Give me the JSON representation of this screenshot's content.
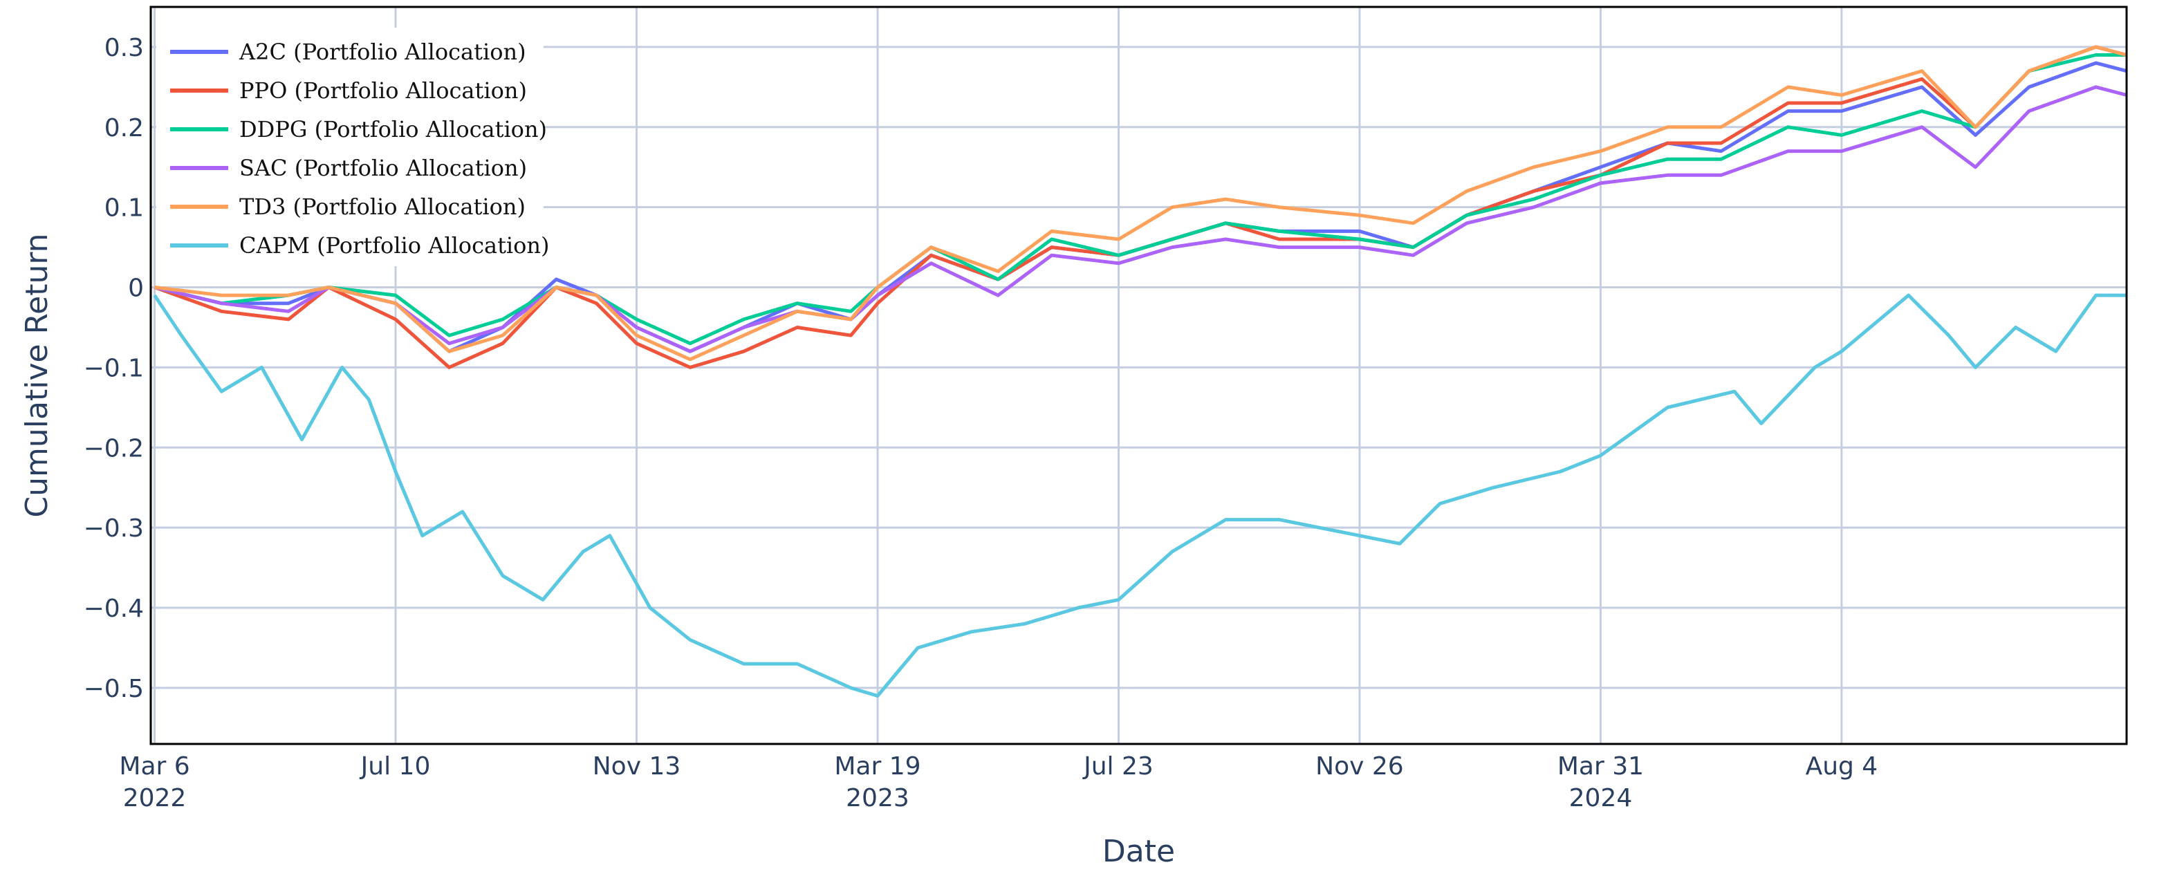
{
  "chart_data": {
    "type": "line",
    "title": "",
    "xlabel": "Date",
    "ylabel": "Cumulative Return",
    "xlim": [
      "2022-03-04",
      "2024-12-31"
    ],
    "ylim": [
      -0.57,
      0.35
    ],
    "grid": true,
    "legend_position": "top-left",
    "x_ticks": [
      {
        "date": "2022-03-06",
        "line1": "Mar 6",
        "line2": "2022"
      },
      {
        "date": "2022-07-10",
        "line1": "Jul 10",
        "line2": ""
      },
      {
        "date": "2022-11-13",
        "line1": "Nov 13",
        "line2": ""
      },
      {
        "date": "2023-03-19",
        "line1": "Mar 19",
        "line2": "2023"
      },
      {
        "date": "2023-07-23",
        "line1": "Jul 23",
        "line2": ""
      },
      {
        "date": "2023-11-26",
        "line1": "Nov 26",
        "line2": ""
      },
      {
        "date": "2024-03-31",
        "line1": "Mar 31",
        "line2": "2024"
      },
      {
        "date": "2024-08-04",
        "line1": "Aug 4",
        "line2": ""
      }
    ],
    "y_ticks": [
      {
        "value": 0.3,
        "label": "0.3"
      },
      {
        "value": 0.2,
        "label": "0.2"
      },
      {
        "value": 0.1,
        "label": "0.1"
      },
      {
        "value": 0,
        "label": "0"
      },
      {
        "value": -0.1,
        "label": "−0.1"
      },
      {
        "value": -0.2,
        "label": "−0.2"
      },
      {
        "value": -0.3,
        "label": "−0.3"
      },
      {
        "value": -0.4,
        "label": "−0.4"
      },
      {
        "value": -0.5,
        "label": "−0.5"
      }
    ],
    "series": [
      {
        "name": "A2C (Portfolio Allocation)",
        "color": "#636efa",
        "points": [
          [
            "2022-03-06",
            0.0
          ],
          [
            "2022-04-10",
            -0.02
          ],
          [
            "2022-05-15",
            -0.02
          ],
          [
            "2022-06-05",
            0.0
          ],
          [
            "2022-07-10",
            -0.02
          ],
          [
            "2022-08-07",
            -0.08
          ],
          [
            "2022-09-04",
            -0.05
          ],
          [
            "2022-10-02",
            0.01
          ],
          [
            "2022-10-23",
            -0.01
          ],
          [
            "2022-11-13",
            -0.05
          ],
          [
            "2022-12-11",
            -0.08
          ],
          [
            "2023-01-08",
            -0.05
          ],
          [
            "2023-02-05",
            -0.02
          ],
          [
            "2023-03-05",
            -0.04
          ],
          [
            "2023-03-19",
            -0.01
          ],
          [
            "2023-04-16",
            0.04
          ],
          [
            "2023-05-21",
            0.01
          ],
          [
            "2023-06-18",
            0.05
          ],
          [
            "2023-07-23",
            0.04
          ],
          [
            "2023-08-20",
            0.06
          ],
          [
            "2023-09-17",
            0.08
          ],
          [
            "2023-10-15",
            0.07
          ],
          [
            "2023-11-26",
            0.07
          ],
          [
            "2023-12-24",
            0.05
          ],
          [
            "2024-01-21",
            0.09
          ],
          [
            "2024-02-25",
            0.12
          ],
          [
            "2024-03-31",
            0.15
          ],
          [
            "2024-05-05",
            0.18
          ],
          [
            "2024-06-02",
            0.17
          ],
          [
            "2024-07-07",
            0.22
          ],
          [
            "2024-08-04",
            0.22
          ],
          [
            "2024-09-15",
            0.25
          ],
          [
            "2024-10-13",
            0.19
          ],
          [
            "2024-11-10",
            0.25
          ],
          [
            "2024-12-15",
            0.28
          ],
          [
            "2024-12-31",
            0.27
          ]
        ]
      },
      {
        "name": "PPO (Portfolio Allocation)",
        "color": "#ef553b",
        "points": [
          [
            "2022-03-06",
            0.0
          ],
          [
            "2022-04-10",
            -0.03
          ],
          [
            "2022-05-15",
            -0.04
          ],
          [
            "2022-06-05",
            0.0
          ],
          [
            "2022-07-10",
            -0.04
          ],
          [
            "2022-08-07",
            -0.1
          ],
          [
            "2022-09-04",
            -0.07
          ],
          [
            "2022-10-02",
            0.0
          ],
          [
            "2022-10-23",
            -0.02
          ],
          [
            "2022-11-13",
            -0.07
          ],
          [
            "2022-12-11",
            -0.1
          ],
          [
            "2023-01-08",
            -0.08
          ],
          [
            "2023-02-05",
            -0.05
          ],
          [
            "2023-03-05",
            -0.06
          ],
          [
            "2023-03-19",
            -0.02
          ],
          [
            "2023-04-16",
            0.04
          ],
          [
            "2023-05-21",
            0.01
          ],
          [
            "2023-06-18",
            0.05
          ],
          [
            "2023-07-23",
            0.04
          ],
          [
            "2023-08-20",
            0.06
          ],
          [
            "2023-09-17",
            0.08
          ],
          [
            "2023-10-15",
            0.06
          ],
          [
            "2023-11-26",
            0.06
          ],
          [
            "2023-12-24",
            0.05
          ],
          [
            "2024-01-21",
            0.09
          ],
          [
            "2024-02-25",
            0.12
          ],
          [
            "2024-03-31",
            0.14
          ],
          [
            "2024-05-05",
            0.18
          ],
          [
            "2024-06-02",
            0.18
          ],
          [
            "2024-07-07",
            0.23
          ],
          [
            "2024-08-04",
            0.23
          ],
          [
            "2024-09-15",
            0.26
          ],
          [
            "2024-10-13",
            0.2
          ],
          [
            "2024-11-10",
            0.27
          ],
          [
            "2024-12-15",
            0.3
          ],
          [
            "2024-12-31",
            0.29
          ]
        ]
      },
      {
        "name": "DDPG (Portfolio Allocation)",
        "color": "#00cc96",
        "points": [
          [
            "2022-03-06",
            0.0
          ],
          [
            "2022-04-10",
            -0.02
          ],
          [
            "2022-05-15",
            -0.01
          ],
          [
            "2022-06-05",
            0.0
          ],
          [
            "2022-07-10",
            -0.01
          ],
          [
            "2022-08-07",
            -0.06
          ],
          [
            "2022-09-04",
            -0.04
          ],
          [
            "2022-10-02",
            0.0
          ],
          [
            "2022-10-23",
            -0.01
          ],
          [
            "2022-11-13",
            -0.04
          ],
          [
            "2022-12-11",
            -0.07
          ],
          [
            "2023-01-08",
            -0.04
          ],
          [
            "2023-02-05",
            -0.02
          ],
          [
            "2023-03-05",
            -0.03
          ],
          [
            "2023-03-19",
            0.0
          ],
          [
            "2023-04-16",
            0.05
          ],
          [
            "2023-05-21",
            0.01
          ],
          [
            "2023-06-18",
            0.06
          ],
          [
            "2023-07-23",
            0.04
          ],
          [
            "2023-08-20",
            0.06
          ],
          [
            "2023-09-17",
            0.08
          ],
          [
            "2023-10-15",
            0.07
          ],
          [
            "2023-11-26",
            0.06
          ],
          [
            "2023-12-24",
            0.05
          ],
          [
            "2024-01-21",
            0.09
          ],
          [
            "2024-02-25",
            0.11
          ],
          [
            "2024-03-31",
            0.14
          ],
          [
            "2024-05-05",
            0.16
          ],
          [
            "2024-06-02",
            0.16
          ],
          [
            "2024-07-07",
            0.2
          ],
          [
            "2024-08-04",
            0.19
          ],
          [
            "2024-09-15",
            0.22
          ],
          [
            "2024-10-13",
            0.2
          ],
          [
            "2024-11-10",
            0.27
          ],
          [
            "2024-12-15",
            0.29
          ],
          [
            "2024-12-31",
            0.29
          ]
        ]
      },
      {
        "name": "SAC (Portfolio Allocation)",
        "color": "#ab63fa",
        "points": [
          [
            "2022-03-06",
            0.0
          ],
          [
            "2022-04-10",
            -0.02
          ],
          [
            "2022-05-15",
            -0.03
          ],
          [
            "2022-06-05",
            0.0
          ],
          [
            "2022-07-10",
            -0.02
          ],
          [
            "2022-08-07",
            -0.07
          ],
          [
            "2022-09-04",
            -0.05
          ],
          [
            "2022-10-02",
            0.0
          ],
          [
            "2022-10-23",
            -0.01
          ],
          [
            "2022-11-13",
            -0.05
          ],
          [
            "2022-12-11",
            -0.08
          ],
          [
            "2023-01-08",
            -0.05
          ],
          [
            "2023-02-05",
            -0.03
          ],
          [
            "2023-03-05",
            -0.04
          ],
          [
            "2023-03-19",
            -0.01
          ],
          [
            "2023-04-16",
            0.03
          ],
          [
            "2023-05-21",
            -0.01
          ],
          [
            "2023-06-18",
            0.04
          ],
          [
            "2023-07-23",
            0.03
          ],
          [
            "2023-08-20",
            0.05
          ],
          [
            "2023-09-17",
            0.06
          ],
          [
            "2023-10-15",
            0.05
          ],
          [
            "2023-11-26",
            0.05
          ],
          [
            "2023-12-24",
            0.04
          ],
          [
            "2024-01-21",
            0.08
          ],
          [
            "2024-02-25",
            0.1
          ],
          [
            "2024-03-31",
            0.13
          ],
          [
            "2024-05-05",
            0.14
          ],
          [
            "2024-06-02",
            0.14
          ],
          [
            "2024-07-07",
            0.17
          ],
          [
            "2024-08-04",
            0.17
          ],
          [
            "2024-09-15",
            0.2
          ],
          [
            "2024-10-13",
            0.15
          ],
          [
            "2024-11-10",
            0.22
          ],
          [
            "2024-12-15",
            0.25
          ],
          [
            "2024-12-31",
            0.24
          ]
        ]
      },
      {
        "name": "TD3 (Portfolio Allocation)",
        "color": "#ffa15a",
        "points": [
          [
            "2022-03-06",
            0.0
          ],
          [
            "2022-04-10",
            -0.01
          ],
          [
            "2022-05-15",
            -0.01
          ],
          [
            "2022-06-05",
            0.0
          ],
          [
            "2022-07-10",
            -0.02
          ],
          [
            "2022-08-07",
            -0.08
          ],
          [
            "2022-09-04",
            -0.06
          ],
          [
            "2022-10-02",
            0.0
          ],
          [
            "2022-10-23",
            -0.01
          ],
          [
            "2022-11-13",
            -0.06
          ],
          [
            "2022-12-11",
            -0.09
          ],
          [
            "2023-01-08",
            -0.06
          ],
          [
            "2023-02-05",
            -0.03
          ],
          [
            "2023-03-05",
            -0.04
          ],
          [
            "2023-03-19",
            0.0
          ],
          [
            "2023-04-16",
            0.05
          ],
          [
            "2023-05-21",
            0.02
          ],
          [
            "2023-06-18",
            0.07
          ],
          [
            "2023-07-23",
            0.06
          ],
          [
            "2023-08-20",
            0.1
          ],
          [
            "2023-09-17",
            0.11
          ],
          [
            "2023-10-15",
            0.1
          ],
          [
            "2023-11-26",
            0.09
          ],
          [
            "2023-12-24",
            0.08
          ],
          [
            "2024-01-21",
            0.12
          ],
          [
            "2024-02-25",
            0.15
          ],
          [
            "2024-03-31",
            0.17
          ],
          [
            "2024-05-05",
            0.2
          ],
          [
            "2024-06-02",
            0.2
          ],
          [
            "2024-07-07",
            0.25
          ],
          [
            "2024-08-04",
            0.24
          ],
          [
            "2024-09-15",
            0.27
          ],
          [
            "2024-10-13",
            0.2
          ],
          [
            "2024-11-10",
            0.27
          ],
          [
            "2024-12-15",
            0.3
          ],
          [
            "2024-12-31",
            0.29
          ]
        ]
      },
      {
        "name": "CAPM (Portfolio Allocation)",
        "color": "#5bc8e2",
        "points": [
          [
            "2022-03-06",
            -0.01
          ],
          [
            "2022-03-20",
            -0.06
          ],
          [
            "2022-04-10",
            -0.13
          ],
          [
            "2022-05-01",
            -0.1
          ],
          [
            "2022-05-22",
            -0.19
          ],
          [
            "2022-06-12",
            -0.1
          ],
          [
            "2022-06-26",
            -0.14
          ],
          [
            "2022-07-10",
            -0.23
          ],
          [
            "2022-07-24",
            -0.31
          ],
          [
            "2022-08-14",
            -0.28
          ],
          [
            "2022-09-04",
            -0.36
          ],
          [
            "2022-09-25",
            -0.39
          ],
          [
            "2022-10-16",
            -0.33
          ],
          [
            "2022-10-30",
            -0.31
          ],
          [
            "2022-11-20",
            -0.4
          ],
          [
            "2022-12-11",
            -0.44
          ],
          [
            "2023-01-08",
            -0.47
          ],
          [
            "2023-02-05",
            -0.47
          ],
          [
            "2023-03-05",
            -0.5
          ],
          [
            "2023-03-19",
            -0.51
          ],
          [
            "2023-04-09",
            -0.45
          ],
          [
            "2023-05-07",
            -0.43
          ],
          [
            "2023-06-04",
            -0.42
          ],
          [
            "2023-07-02",
            -0.4
          ],
          [
            "2023-07-23",
            -0.39
          ],
          [
            "2023-08-20",
            -0.33
          ],
          [
            "2023-09-17",
            -0.29
          ],
          [
            "2023-10-15",
            -0.29
          ],
          [
            "2023-11-05",
            -0.3
          ],
          [
            "2023-11-26",
            -0.31
          ],
          [
            "2023-12-17",
            -0.32
          ],
          [
            "2024-01-07",
            -0.27
          ],
          [
            "2024-02-04",
            -0.25
          ],
          [
            "2024-03-10",
            -0.23
          ],
          [
            "2024-03-31",
            -0.21
          ],
          [
            "2024-05-05",
            -0.15
          ],
          [
            "2024-06-09",
            -0.13
          ],
          [
            "2024-06-23",
            -0.17
          ],
          [
            "2024-07-21",
            -0.1
          ],
          [
            "2024-08-04",
            -0.08
          ],
          [
            "2024-09-08",
            -0.01
          ],
          [
            "2024-09-29",
            -0.06
          ],
          [
            "2024-10-13",
            -0.1
          ],
          [
            "2024-11-03",
            -0.05
          ],
          [
            "2024-11-24",
            -0.08
          ],
          [
            "2024-12-15",
            -0.01
          ],
          [
            "2024-12-31",
            -0.01
          ]
        ]
      }
    ]
  }
}
